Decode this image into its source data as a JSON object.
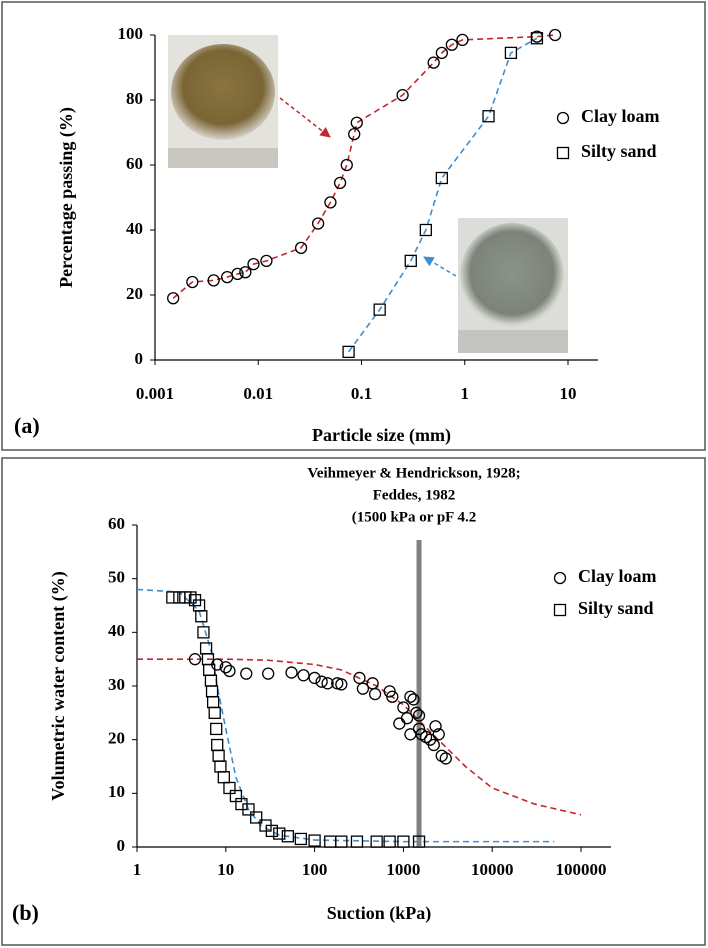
{
  "chart_data": [
    {
      "type": "scatter",
      "panel_label": "(a)",
      "xlabel": "Particle size (mm)",
      "ylabel": "Percentage passing (%)",
      "log_x": true,
      "xlim": [
        0.001,
        10
      ],
      "ylim": [
        0,
        100
      ],
      "xticks": [
        0.001,
        0.01,
        0.1,
        1,
        10
      ],
      "yticks": [
        0,
        20,
        40,
        60,
        80,
        100
      ],
      "legend": "right",
      "series": [
        {
          "name": "Clay loam",
          "marker": "circle",
          "color": "#000000",
          "line_color": "#c0282d",
          "x": [
            0.0015,
            0.0023,
            0.0037,
            0.005,
            0.0063,
            0.0075,
            0.009,
            0.012,
            0.026,
            0.038,
            0.05,
            0.062,
            0.072,
            0.085,
            0.09,
            0.25,
            0.5,
            0.6,
            0.75,
            0.95,
            5,
            7.5
          ],
          "values": [
            19,
            24,
            24.5,
            25.5,
            26.5,
            27,
            29.5,
            30.5,
            34.5,
            42,
            48.5,
            54.5,
            60,
            69.5,
            73,
            81.5,
            91.5,
            94.5,
            97,
            98.5,
            99.5,
            100
          ]
        },
        {
          "name": "Silty sand",
          "marker": "square",
          "color": "#000000",
          "line_color": "#3c8fd0",
          "x": [
            0.075,
            0.15,
            0.3,
            0.42,
            0.6,
            1.7,
            2.8,
            5
          ],
          "values": [
            2.5,
            15.5,
            30.5,
            40,
            56,
            75,
            94.5,
            99
          ]
        }
      ]
    },
    {
      "type": "scatter",
      "panel_label": "(b)",
      "xlabel": "Suction (kPa)",
      "ylabel": "Volumetric water content (%)",
      "log_x": true,
      "xlim": [
        1,
        100000
      ],
      "ylim": [
        0,
        60
      ],
      "xticks": [
        1,
        10,
        100,
        1000,
        10000,
        100000
      ],
      "yticks": [
        0,
        10,
        20,
        30,
        40,
        50,
        60
      ],
      "legend": "right",
      "annotation": [
        "Veihmeyer & Hendrickson, 1928;",
        "Feddes, 1982",
        "(1500 kPa or pF 4.2"
      ],
      "vline": 1500,
      "vline_color": "#808080",
      "series": [
        {
          "name": "Clay loam",
          "marker": "circle",
          "color": "#000000",
          "x": [
            4.5,
            8,
            10,
            11,
            17,
            30,
            55,
            75,
            100,
            120,
            140,
            180,
            200,
            320,
            350,
            450,
            480,
            700,
            750,
            900,
            1000,
            1100,
            1200,
            1200,
            1300,
            1400,
            1500,
            1500,
            1600,
            1800,
            2000,
            2200,
            2300,
            2500,
            2700,
            3000
          ],
          "values": [
            35,
            34,
            33.5,
            32.8,
            32.3,
            32.3,
            32.5,
            32,
            31.5,
            30.8,
            30.5,
            30.5,
            30.3,
            31.5,
            29.5,
            30.5,
            28.5,
            29,
            28,
            23,
            26,
            24,
            28,
            21,
            27.5,
            25,
            24.5,
            22,
            21,
            20.5,
            20,
            19,
            22.5,
            21,
            17,
            16.5
          ]
        },
        {
          "name": "Silty sand",
          "marker": "square",
          "color": "#000000",
          "x": [
            2.5,
            3,
            3.5,
            4,
            4.5,
            5,
            5.3,
            5.6,
            6,
            6.3,
            6.5,
            6.8,
            7,
            7.2,
            7.5,
            7.8,
            8,
            8.3,
            8.7,
            9.5,
            11,
            13,
            15,
            18,
            22,
            28,
            33,
            40,
            50,
            70,
            100,
            150,
            200,
            300,
            500,
            700,
            1000,
            1500
          ],
          "values": [
            46.5,
            46.5,
            46.5,
            46.5,
            46,
            45,
            43,
            40,
            37,
            35,
            33,
            31,
            29,
            27,
            25,
            22,
            19,
            17,
            15,
            13,
            11,
            9.5,
            8,
            7,
            5.5,
            4,
            3,
            2.5,
            2,
            1.5,
            1.2,
            1,
            1,
            1,
            1,
            1,
            1,
            1
          ]
        }
      ],
      "fits": [
        {
          "color": "#c0282d",
          "x": [
            1,
            10,
            30,
            100,
            200,
            500,
            1000,
            2000,
            5000,
            10000,
            30000,
            100000
          ],
          "values": [
            35,
            35,
            34.8,
            34,
            33,
            30,
            26.5,
            21.5,
            15,
            11,
            8,
            6
          ]
        },
        {
          "color": "#3c8fd0",
          "x": [
            1,
            3,
            5,
            7,
            8,
            10,
            13,
            18,
            25,
            40,
            100,
            1000,
            50000
          ],
          "values": [
            48,
            47.5,
            44,
            36,
            30,
            22,
            13,
            7,
            4,
            2.2,
            1.3,
            1,
            1
          ]
        }
      ]
    }
  ]
}
